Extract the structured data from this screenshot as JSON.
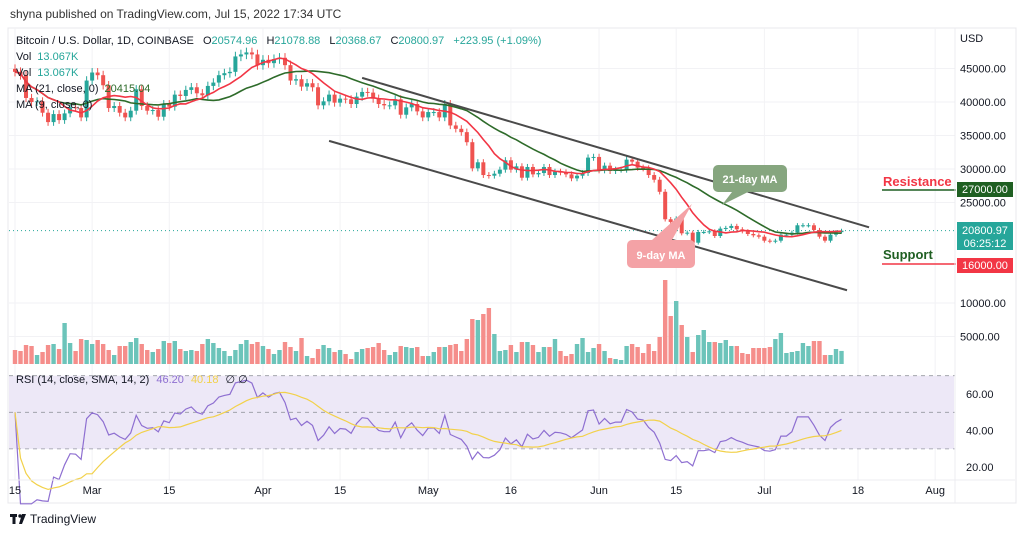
{
  "header": {
    "published": "shyna published on TradingView.com, Jul 15, 2022 17:34 UTC"
  },
  "legend": {
    "symbol": "Bitcoin / U.S. Dollar, 1D, COINBASE",
    "open_label": "O",
    "open": "20574.96",
    "high_label": "H",
    "high": "21078.88",
    "low_label": "L",
    "low": "20368.67",
    "close_label": "C",
    "close": "20800.97",
    "change": "+223.95 (+1.09%)",
    "vol_label": "Vol",
    "vol_value": "13.067K",
    "vol2_label": "Vol",
    "vol2_value": "13.067K",
    "ma21_label": "MA (21, close, 0)",
    "ma21_value": "20415.04",
    "ma9_label": "MA (9, close, 0)",
    "rsi_label": "RSI (14, close, SMA, 14, 2)",
    "rsi_value": "46.20",
    "rsi_sma_value": "40.18",
    "rsi_extra": "∅ ∅"
  },
  "price_axis": {
    "currency": "USD",
    "ticks": [
      "45000.00",
      "40000.00",
      "35000.00",
      "30000.00",
      "25000.00",
      "10000.00",
      "5000.00"
    ],
    "tick_values": [
      45000,
      40000,
      35000,
      30000,
      25000,
      10000,
      5000
    ],
    "resistance_value": "27000.00",
    "last_price": "20800.97",
    "countdown": "06:25:12",
    "support_value": "16000.00"
  },
  "rsi_axis": {
    "ticks": [
      "60.00",
      "40.00",
      "20.00"
    ],
    "tick_values": [
      60,
      40,
      20
    ],
    "band": [
      30,
      70
    ],
    "mid": 50
  },
  "time_axis": [
    {
      "label": "15",
      "date": "2022-02-15"
    },
    {
      "label": "Mar",
      "date": "2022-03-01"
    },
    {
      "label": "15",
      "date": "2022-03-15"
    },
    {
      "label": "Apr",
      "date": "2022-04-01"
    },
    {
      "label": "15",
      "date": "2022-04-15"
    },
    {
      "label": "May",
      "date": "2022-05-01"
    },
    {
      "label": "16",
      "date": "2022-05-16"
    },
    {
      "label": "Jun",
      "date": "2022-06-01"
    },
    {
      "label": "15",
      "date": "2022-06-15"
    },
    {
      "label": "Jul",
      "date": "2022-07-01"
    },
    {
      "label": "18",
      "date": "2022-07-18"
    },
    {
      "label": "Aug",
      "date": "2022-08-01"
    }
  ],
  "annotations": {
    "resistance_label": "Resistance",
    "support_label": "Support",
    "ma21_callout": "21-day MA",
    "ma9_callout": "9-day MA"
  },
  "footer": {
    "brand": "TradingView"
  },
  "colors": {
    "up": "#26a69a",
    "down": "#ef5350",
    "vol_up": "#6cc4ba",
    "vol_down": "#f58e8b",
    "ma21": "#2e6b2a",
    "ma9": "#f23645",
    "rsi": "#8e6fd1",
    "rsi_sma": "#f2d14a",
    "rsi_band": "#ede8f7",
    "resistance_box": "#1f5f22",
    "support_box": "#f23645",
    "last_box": "#26a69a",
    "channel": "#4a4a4a"
  },
  "chart_data": {
    "type": "candlestick",
    "title": "Bitcoin / U.S. Dollar, 1D, COINBASE",
    "ylabel": "USD",
    "ylim": [
      0,
      50000
    ],
    "grid": true,
    "last_candle": {
      "open": 20574.96,
      "high": 21078.88,
      "low": 20368.67,
      "close": 20800.97
    },
    "months": [
      {
        "month": "2022-02",
        "first_day": 15,
        "close": [
          44.5,
          44.0,
          40.6,
          40.0,
          40.1,
          38.4,
          37.0,
          38.2,
          37.3,
          38.3,
          39.2,
          39.1,
          37.7,
          43.2
        ],
        "volume_k": [
          14,
          13,
          19,
          18,
          9,
          12,
          19,
          20,
          15,
          41,
          21,
          13,
          25,
          24
        ]
      },
      {
        "month": "2022-03",
        "first_day": 1,
        "close": [
          44.4,
          44.0,
          42.5,
          39.1,
          39.4,
          38.4,
          37.7,
          38.7,
          41.9,
          39.4,
          38.7,
          38.8,
          37.8,
          39.7,
          39.3,
          41.1,
          40.9,
          41.8,
          42.2,
          41.3,
          41.0,
          42.4,
          42.9,
          44.0,
          44.3,
          44.5,
          46.8,
          47.1,
          47.4,
          47.1,
          45.5
        ],
        "volume_k": [
          20,
          24,
          20,
          14,
          9,
          18,
          18,
          22,
          26,
          20,
          14,
          12,
          15,
          23,
          21,
          23,
          15,
          13,
          14,
          13,
          20,
          25,
          21,
          16,
          13,
          8,
          14,
          20,
          24,
          20,
          22
        ]
      },
      {
        "month": "2022-04",
        "first_day": 1,
        "close": [
          46.3,
          45.8,
          46.4,
          46.6,
          45.5,
          43.2,
          43.4,
          42.3,
          42.8,
          42.2,
          39.5,
          40.1,
          41.1,
          39.9,
          40.5,
          40.4,
          39.7,
          40.8,
          41.5,
          41.4,
          40.5,
          39.7,
          39.5,
          39.5,
          40.4,
          38.1,
          39.2,
          39.7,
          38.6,
          37.7
        ],
        "volume_k": [
          18,
          15,
          10,
          14,
          22,
          17,
          13,
          26,
          8,
          6,
          15,
          19,
          16,
          12,
          14,
          10,
          5,
          12,
          15,
          16,
          17,
          21,
          14,
          9,
          12,
          18,
          17,
          16,
          17,
          8
        ]
      },
      {
        "month": "2022-05",
        "first_day": 1,
        "close": [
          38.5,
          38.5,
          37.7,
          39.7,
          36.5,
          36.0,
          35.5,
          34.0,
          30.1,
          31.0,
          29.1,
          29.0,
          29.3,
          29.9,
          31.3,
          29.9,
          30.4,
          28.7,
          30.3,
          29.2,
          29.4,
          30.3,
          29.1,
          29.6,
          29.5,
          29.2,
          28.6,
          29.0,
          29.4,
          31.7,
          31.8
        ],
        "volume_k": [
          8,
          12,
          17,
          17,
          19,
          20,
          13,
          25,
          45,
          44,
          50,
          56,
          30,
          13,
          14,
          19,
          12,
          22,
          22,
          19,
          12,
          17,
          17,
          25,
          13,
          8,
          10,
          20,
          26,
          12,
          16
        ]
      },
      {
        "month": "2022-06",
        "first_day": 1,
        "close": [
          29.8,
          30.5,
          29.7,
          29.9,
          29.9,
          31.4,
          31.1,
          30.2,
          30.1,
          29.1,
          28.4,
          26.6,
          22.5,
          22.1,
          22.6,
          20.4,
          20.5,
          19.0,
          20.6,
          20.6,
          20.7,
          20.0,
          21.1,
          21.2,
          21.5,
          21.0,
          20.7,
          20.3,
          20.1,
          19.9
        ],
        "volume_k": [
          20,
          13,
          6,
          5,
          4,
          18,
          20,
          17,
          11,
          20,
          13,
          27,
          84,
          48,
          63,
          39,
          27,
          12,
          29,
          34,
          22,
          22,
          21,
          24,
          18,
          18,
          11,
          10,
          16,
          16
        ]
      },
      {
        "month": "2022-07",
        "first_day": 1,
        "close": [
          19.3,
          19.2,
          19.3,
          20.2,
          20.2,
          20.5,
          21.6,
          21.6,
          21.6,
          20.9,
          19.9,
          19.3,
          20.2,
          20.57,
          20.8
        ],
        "volume_k": [
          16,
          17,
          25,
          31,
          11,
          12,
          13,
          21,
          18,
          23,
          23,
          9,
          9,
          15,
          13.067
        ]
      }
    ],
    "close_unit": "thousand USD",
    "moving_averages": [
      {
        "name": "MA (21, close, 0)",
        "period": 21
      },
      {
        "name": "MA (9, close, 0)",
        "period": 9
      }
    ],
    "rsi": {
      "period": 14,
      "sma": 14,
      "ylim": [
        15,
        75
      ]
    },
    "trendlines": [
      {
        "name": "channel-upper",
        "from": {
          "date": "2022-04-19",
          "price": 43600
        },
        "to": {
          "date": "2022-07-20",
          "price": 21300
        }
      },
      {
        "name": "channel-lower",
        "from": {
          "date": "2022-04-13",
          "price": 34200
        },
        "to": {
          "date": "2022-07-16",
          "price": 11900
        }
      }
    ],
    "levels": {
      "resistance": 27000,
      "support": 16000,
      "last": 20800.97
    }
  }
}
